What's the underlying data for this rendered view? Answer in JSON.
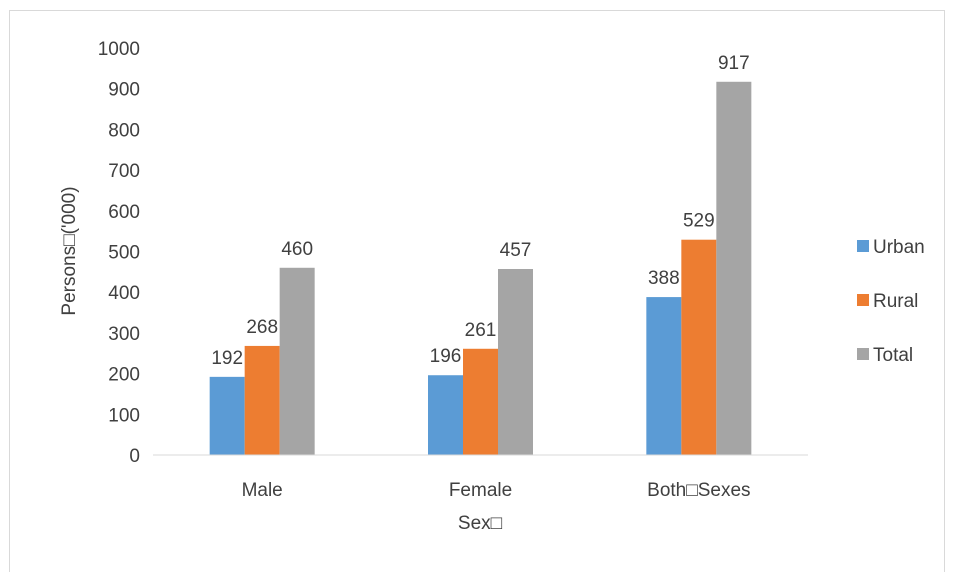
{
  "chart_data": {
    "type": "bar",
    "categories": [
      "Male",
      "Female",
      "Both□Sexes"
    ],
    "series": [
      {
        "name": "Urban",
        "values": [
          192,
          196,
          388
        ],
        "color": "#5b9bd5"
      },
      {
        "name": "Rural",
        "values": [
          268,
          261,
          529
        ],
        "color": "#ed7d31"
      },
      {
        "name": "Total",
        "values": [
          460,
          457,
          917
        ],
        "color": "#a5a5a5"
      }
    ],
    "xlabel": "Sex□",
    "ylabel": "Persons□('000)",
    "ylim": [
      0,
      1000
    ],
    "yticks": [
      0,
      100,
      200,
      300,
      400,
      500,
      600,
      700,
      800,
      900,
      1000
    ],
    "grid": false,
    "legend": "right",
    "data_labels": true,
    "axis_color": "#d9d9d9",
    "text_color": "#404040"
  }
}
